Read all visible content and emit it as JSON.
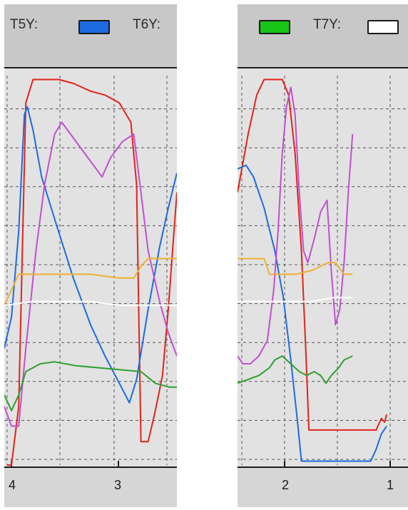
{
  "legend_left": [
    {
      "label": "T5Y:",
      "color": "#1e6be0"
    },
    {
      "label": "T6Y:",
      "color": ""
    }
  ],
  "legend_right": [
    {
      "label": "",
      "color": "#19c419"
    },
    {
      "label": "T7Y:",
      "color": "#ffffff"
    }
  ],
  "chart_data": [
    {
      "type": "line",
      "panel": "left",
      "x_tick_labels": [
        "4",
        "3"
      ],
      "x_range": [
        4.1,
        2.9
      ],
      "y_range": [
        0,
        100
      ],
      "grid": true,
      "series": [
        {
          "color": "#e2231a",
          "points": [
            [
              4.08,
              0
            ],
            [
              4.05,
              0
            ],
            [
              4.0,
              15
            ],
            [
              3.95,
              93
            ],
            [
              3.9,
              99
            ],
            [
              3.82,
              99
            ],
            [
              3.72,
              99
            ],
            [
              3.62,
              98
            ],
            [
              3.5,
              96
            ],
            [
              3.4,
              95
            ],
            [
              3.3,
              93
            ],
            [
              3.22,
              88
            ],
            [
              3.18,
              72
            ],
            [
              3.15,
              6
            ],
            [
              3.1,
              6
            ],
            [
              3.05,
              14
            ],
            [
              3.0,
              23
            ],
            [
              2.96,
              40
            ],
            [
              2.93,
              55
            ],
            [
              2.9,
              70
            ]
          ]
        },
        {
          "color": "#1e6be0",
          "points": [
            [
              4.1,
              30
            ],
            [
              4.05,
              38
            ],
            [
              4.0,
              60
            ],
            [
              3.96,
              90
            ],
            [
              3.94,
              92
            ],
            [
              3.9,
              86
            ],
            [
              3.84,
              74
            ],
            [
              3.74,
              62
            ],
            [
              3.62,
              48
            ],
            [
              3.5,
              36
            ],
            [
              3.4,
              28
            ],
            [
              3.3,
              21
            ],
            [
              3.23,
              16
            ],
            [
              3.18,
              22
            ],
            [
              3.1,
              40
            ],
            [
              3.02,
              56
            ],
            [
              2.96,
              66
            ],
            [
              2.9,
              75
            ]
          ]
        },
        {
          "color": "#c050d0",
          "points": [
            [
              4.1,
              15
            ],
            [
              4.05,
              10
            ],
            [
              4.0,
              10
            ],
            [
              3.95,
              30
            ],
            [
              3.88,
              55
            ],
            [
              3.82,
              72
            ],
            [
              3.75,
              85
            ],
            [
              3.7,
              88
            ],
            [
              3.62,
              84
            ],
            [
              3.5,
              78
            ],
            [
              3.42,
              74
            ],
            [
              3.36,
              79
            ],
            [
              3.28,
              83
            ],
            [
              3.2,
              85
            ],
            [
              3.15,
              70
            ],
            [
              3.1,
              55
            ],
            [
              3.02,
              42
            ],
            [
              2.96,
              34
            ],
            [
              2.9,
              28
            ]
          ]
        },
        {
          "color": "#f0b030",
          "points": [
            [
              4.1,
              41
            ],
            [
              4.05,
              45
            ],
            [
              4.0,
              49
            ],
            [
              3.9,
              49
            ],
            [
              3.7,
              49
            ],
            [
              3.5,
              49
            ],
            [
              3.3,
              48
            ],
            [
              3.2,
              48
            ],
            [
              3.15,
              51
            ],
            [
              3.1,
              53
            ],
            [
              3.0,
              53
            ],
            [
              2.9,
              53
            ]
          ]
        },
        {
          "color": "#ffffff",
          "points": [
            [
              4.1,
              41
            ],
            [
              3.9,
              42
            ],
            [
              3.7,
              42
            ],
            [
              3.5,
              42
            ],
            [
              3.3,
              41
            ],
            [
              3.1,
              41
            ],
            [
              2.9,
              41
            ]
          ]
        },
        {
          "color": "#2ea02e",
          "points": [
            [
              4.1,
              18
            ],
            [
              4.05,
              14
            ],
            [
              4.0,
              18
            ],
            [
              3.95,
              24
            ],
            [
              3.85,
              26
            ],
            [
              3.75,
              26.5
            ],
            [
              3.6,
              25.5
            ],
            [
              3.45,
              25
            ],
            [
              3.3,
              24.5
            ],
            [
              3.15,
              24
            ],
            [
              3.05,
              21
            ],
            [
              2.95,
              20
            ],
            [
              2.9,
              20
            ]
          ]
        }
      ]
    },
    {
      "type": "line",
      "panel": "right",
      "x_tick_labels": [
        "2",
        "1"
      ],
      "x_range": [
        2.3,
        0.7
      ],
      "y_range": [
        0,
        100
      ],
      "grid": true,
      "series": [
        {
          "color": "#e2231a",
          "points": [
            [
              2.3,
              70
            ],
            [
              2.2,
              85
            ],
            [
              2.12,
              95
            ],
            [
              2.05,
              99
            ],
            [
              1.95,
              99
            ],
            [
              1.88,
              99
            ],
            [
              1.82,
              95
            ],
            [
              1.76,
              80
            ],
            [
              1.7,
              55
            ],
            [
              1.66,
              30
            ],
            [
              1.63,
              9
            ],
            [
              1.55,
              9
            ],
            [
              1.4,
              9
            ],
            [
              1.2,
              9
            ],
            [
              1.0,
              9
            ],
            [
              0.95,
              12
            ],
            [
              0.92,
              11
            ],
            [
              0.9,
              13
            ]
          ]
        },
        {
          "color": "#1e6be0",
          "points": [
            [
              2.3,
              76
            ],
            [
              2.22,
              77
            ],
            [
              2.15,
              74
            ],
            [
              2.05,
              66
            ],
            [
              1.95,
              55
            ],
            [
              1.87,
              43
            ],
            [
              1.8,
              27
            ],
            [
              1.74,
              12
            ],
            [
              1.7,
              1
            ],
            [
              1.6,
              1
            ],
            [
              1.4,
              1
            ],
            [
              1.2,
              1
            ],
            [
              1.05,
              1
            ],
            [
              1.0,
              4
            ],
            [
              0.95,
              8
            ],
            [
              0.9,
              10
            ]
          ]
        },
        {
          "color": "#c050d0",
          "points": [
            [
              2.3,
              28
            ],
            [
              2.25,
              26
            ],
            [
              2.18,
              26
            ],
            [
              2.1,
              28
            ],
            [
              2.02,
              32
            ],
            [
              1.96,
              45
            ],
            [
              1.92,
              60
            ],
            [
              1.88,
              80
            ],
            [
              1.84,
              92
            ],
            [
              1.8,
              97
            ],
            [
              1.76,
              90
            ],
            [
              1.72,
              70
            ],
            [
              1.68,
              55
            ],
            [
              1.64,
              52
            ],
            [
              1.58,
              58
            ],
            [
              1.52,
              65
            ],
            [
              1.46,
              68
            ],
            [
              1.42,
              50
            ],
            [
              1.38,
              36
            ],
            [
              1.34,
              40
            ],
            [
              1.3,
              52
            ],
            [
              1.26,
              70
            ],
            [
              1.22,
              85
            ]
          ]
        },
        {
          "color": "#f0b030",
          "points": [
            [
              2.3,
              53
            ],
            [
              2.2,
              53
            ],
            [
              2.1,
              53
            ],
            [
              2.05,
              53
            ],
            [
              2.0,
              49
            ],
            [
              1.9,
              49
            ],
            [
              1.75,
              49
            ],
            [
              1.6,
              50
            ],
            [
              1.45,
              52
            ],
            [
              1.38,
              52
            ],
            [
              1.3,
              49
            ],
            [
              1.22,
              49
            ]
          ]
        },
        {
          "color": "#ffffff",
          "points": [
            [
              2.3,
              42
            ],
            [
              2.15,
              42
            ],
            [
              2.0,
              42
            ],
            [
              1.8,
              42
            ],
            [
              1.6,
              42
            ],
            [
              1.4,
              43
            ],
            [
              1.22,
              43
            ]
          ]
        },
        {
          "color": "#2ea02e",
          "points": [
            [
              2.3,
              21
            ],
            [
              2.2,
              22
            ],
            [
              2.1,
              23
            ],
            [
              2.0,
              25
            ],
            [
              1.95,
              27
            ],
            [
              1.88,
              28
            ],
            [
              1.8,
              26
            ],
            [
              1.72,
              24
            ],
            [
              1.65,
              23
            ],
            [
              1.58,
              24
            ],
            [
              1.52,
              23
            ],
            [
              1.47,
              21
            ],
            [
              1.42,
              23
            ],
            [
              1.35,
              25
            ],
            [
              1.3,
              27
            ],
            [
              1.22,
              28
            ]
          ]
        }
      ]
    }
  ]
}
